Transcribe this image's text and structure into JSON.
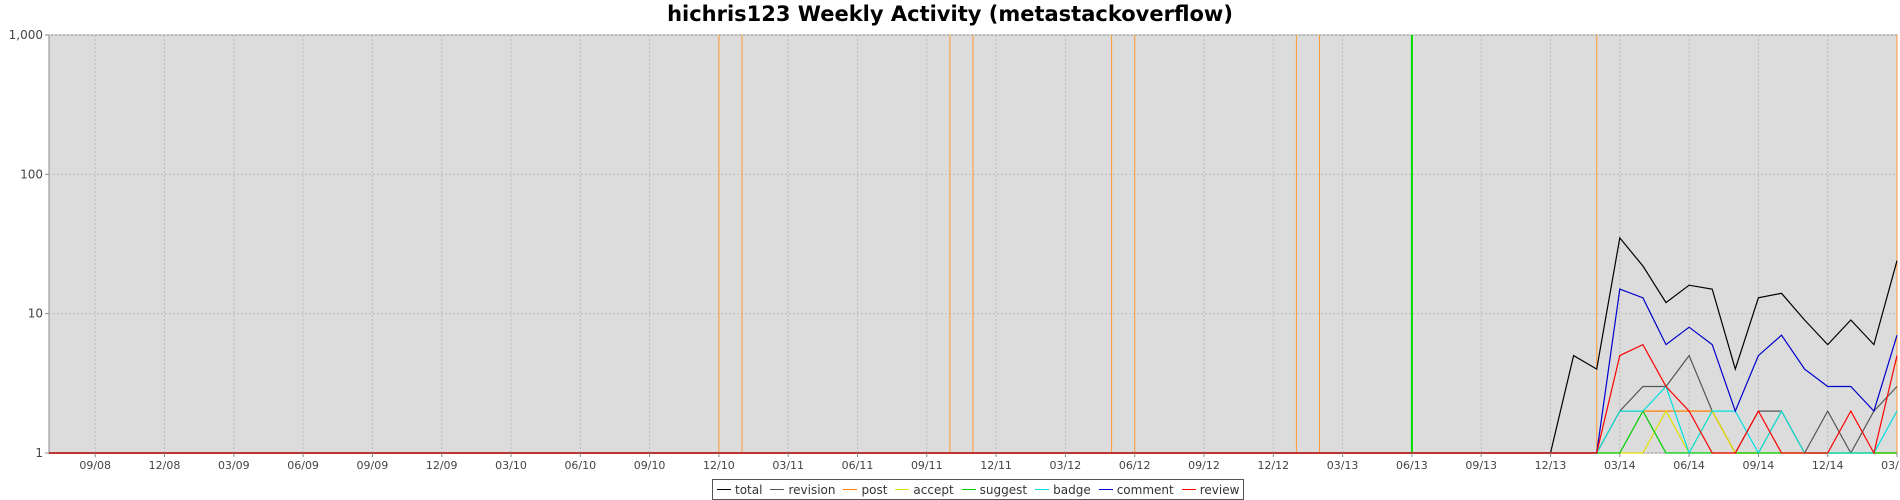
{
  "chart_data": {
    "type": "line",
    "title": "hichris123 Weekly Activity (metastackoverflow)",
    "xlabel": "",
    "ylabel": "",
    "y_scale": "log",
    "ylim": [
      1,
      1000
    ],
    "grid": true,
    "legend_position": "bottom-center",
    "x_range": [
      "2008-07",
      "2015-03"
    ],
    "x_tick_labels": [
      "09/08",
      "12/08",
      "03/09",
      "06/09",
      "09/09",
      "12/09",
      "03/10",
      "06/10",
      "09/10",
      "12/10",
      "03/11",
      "06/11",
      "09/11",
      "12/11",
      "03/12",
      "06/12",
      "09/12",
      "12/12",
      "03/13",
      "06/13",
      "09/13",
      "12/13",
      "03/14",
      "06/14",
      "09/14",
      "12/14",
      "03/15"
    ],
    "y_tick_labels": [
      "1",
      "10",
      "100",
      "1,000"
    ],
    "y_tick_values": [
      1,
      10,
      100,
      1000
    ],
    "x": [
      "2014-01",
      "2014-02",
      "2014-03",
      "2014-04",
      "2014-05",
      "2014-06",
      "2014-07",
      "2014-08",
      "2014-09",
      "2014-10",
      "2014-11",
      "2014-12",
      "2015-01",
      "2015-02",
      "2015-03"
    ],
    "series": [
      {
        "name": "total",
        "color": "#000000",
        "values": [
          5,
          4,
          35,
          22,
          12,
          16,
          15,
          4,
          13,
          14,
          9,
          6,
          9,
          6,
          24
        ]
      },
      {
        "name": "revision",
        "color": "#555555",
        "values": [
          1,
          1,
          2,
          3,
          3,
          5,
          2,
          1,
          2,
          2,
          1,
          2,
          1,
          2,
          3
        ]
      },
      {
        "name": "post",
        "color": "#ff8000",
        "values": [
          1,
          1,
          2,
          2,
          2,
          2,
          2,
          1,
          1,
          2,
          1,
          1,
          1,
          1,
          1
        ]
      },
      {
        "name": "accept",
        "color": "#e0e000",
        "values": [
          1,
          1,
          1,
          1,
          2,
          1,
          2,
          1,
          1,
          1,
          1,
          1,
          1,
          1,
          1
        ]
      },
      {
        "name": "suggest",
        "color": "#00cc00",
        "values": [
          1,
          1,
          1,
          2,
          1,
          1,
          1,
          1,
          1,
          1,
          1,
          1,
          1,
          1,
          1
        ]
      },
      {
        "name": "badge",
        "color": "#00e0e0",
        "values": [
          1,
          1,
          2,
          2,
          3,
          1,
          2,
          2,
          1,
          2,
          1,
          1,
          1,
          1,
          2
        ]
      },
      {
        "name": "comment",
        "color": "#0000cc",
        "values": [
          1,
          1,
          15,
          13,
          6,
          8,
          6,
          2,
          5,
          7,
          4,
          3,
          3,
          2,
          7
        ]
      },
      {
        "name": "review",
        "color": "#ff0000",
        "values": [
          1,
          1,
          5,
          6,
          3,
          2,
          1,
          1,
          2,
          1,
          1,
          1,
          2,
          1,
          5
        ]
      }
    ],
    "markers": [
      {
        "x": "2010-12",
        "color": "#ff9933"
      },
      {
        "x": "2011-01",
        "color": "#ff9933"
      },
      {
        "x": "2011-10",
        "color": "#ff9933"
      },
      {
        "x": "2011-11",
        "color": "#ff9933"
      },
      {
        "x": "2012-05",
        "color": "#ff9933"
      },
      {
        "x": "2012-06",
        "color": "#ff9933"
      },
      {
        "x": "2013-01",
        "color": "#ff9933"
      },
      {
        "x": "2013-02",
        "color": "#ff9933"
      },
      {
        "x": "2013-06",
        "color": "#00dd00"
      },
      {
        "x": "2014-02",
        "color": "#ff9933"
      },
      {
        "x": "2015-03",
        "color": "#ff9933"
      }
    ]
  }
}
